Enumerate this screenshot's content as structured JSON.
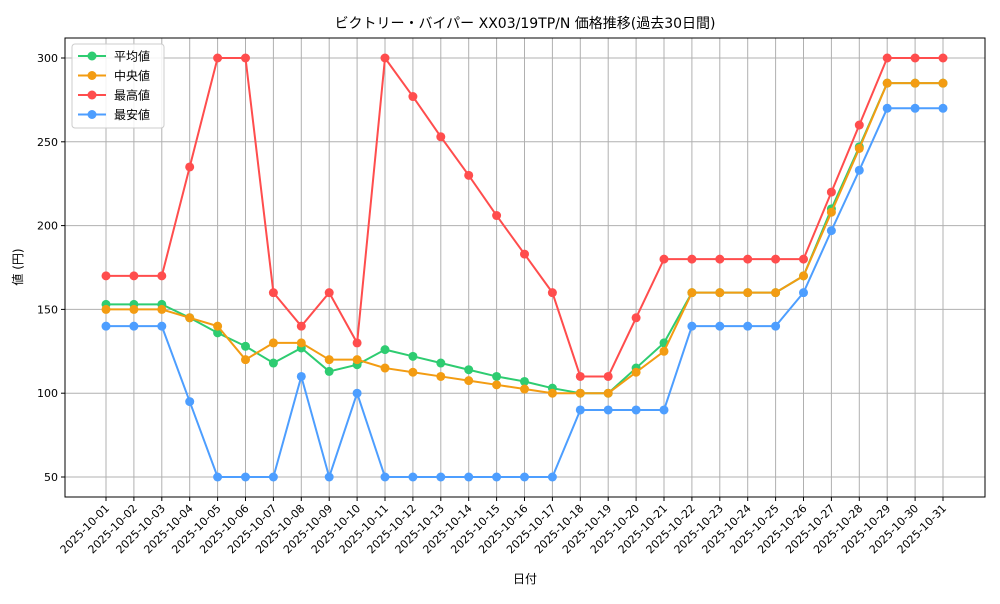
{
  "chart_data": {
    "type": "line",
    "title": "ビクトリー・バイパー XX03/19TP/N 価格推移(過去30日間)",
    "xlabel": "日付",
    "ylabel": "値 (円)",
    "ylim": [
      37,
      312
    ],
    "yticks": [
      50,
      100,
      150,
      200,
      250,
      300
    ],
    "grid": true,
    "legend": "top-left",
    "x": [
      "2025-10-01",
      "2025-10-02",
      "2025-10-03",
      "2025-10-04",
      "2025-10-05",
      "2025-10-06",
      "2025-10-07",
      "2025-10-08",
      "2025-10-09",
      "2025-10-10",
      "2025-10-11",
      "2025-10-12",
      "2025-10-13",
      "2025-10-14",
      "2025-10-15",
      "2025-10-16",
      "2025-10-17",
      "2025-10-18",
      "2025-10-19",
      "2025-10-20",
      "2025-10-21",
      "2025-10-22",
      "2025-10-23",
      "2025-10-24",
      "2025-10-25",
      "2025-10-26",
      "2025-10-27",
      "2025-10-28",
      "2025-10-29",
      "2025-10-30",
      "2025-10-31"
    ],
    "series": [
      {
        "name": "平均値",
        "color": "#2ecc71",
        "values": [
          153,
          153,
          153,
          145,
          136,
          128,
          118,
          127,
          113,
          117,
          126,
          122,
          118,
          114,
          110,
          107,
          103,
          100,
          100,
          115,
          130,
          160,
          160,
          160,
          160,
          170,
          210,
          247,
          285,
          285,
          285
        ]
      },
      {
        "name": "中央値",
        "color": "#f39c12",
        "values": [
          150,
          150,
          150,
          145,
          140,
          120,
          130,
          130,
          120,
          120,
          115,
          112.5,
          110,
          107.5,
          105,
          102.5,
          100,
          100,
          100,
          112.5,
          125,
          160,
          160,
          160,
          160,
          170,
          208,
          246,
          285,
          285,
          285
        ]
      },
      {
        "name": "最高値",
        "color": "#ff4d4d",
        "values": [
          170,
          170,
          170,
          235,
          300,
          300,
          160,
          140,
          160,
          130,
          300,
          277,
          253,
          230,
          206,
          183,
          160,
          110,
          110,
          145,
          180,
          180,
          180,
          180,
          180,
          180,
          220,
          260,
          300,
          300,
          300
        ]
      },
      {
        "name": "最安値",
        "color": "#4d9eff",
        "values": [
          140,
          140,
          140,
          95,
          50,
          50,
          50,
          110,
          50,
          100,
          50,
          50,
          50,
          50,
          50,
          50,
          50,
          90,
          90,
          90,
          90,
          140,
          140,
          140,
          140,
          160,
          197,
          233,
          270,
          270,
          270
        ]
      }
    ]
  }
}
